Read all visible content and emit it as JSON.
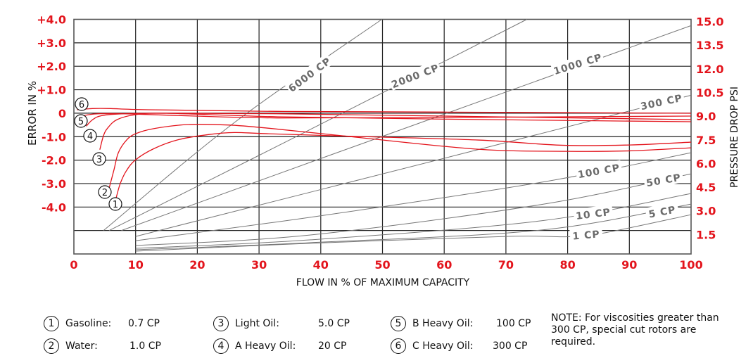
{
  "chart_data": {
    "type": "line",
    "xlabel": "FLOW IN % OF MAXIMUM CAPACITY",
    "ylabel": "ERROR IN %",
    "y2label": "PRESSURE DROP PSI",
    "xlim": [
      0,
      100
    ],
    "ylim": [
      -5.0,
      5.0
    ],
    "y2lim": [
      0,
      15.0
    ],
    "x_ticks": [
      "0",
      "10",
      "20",
      "30",
      "40",
      "50",
      "60",
      "70",
      "80",
      "90",
      "100"
    ],
    "y_ticks": [
      "+4.0",
      "+3.0",
      "+2.0",
      "+1.0",
      "0",
      "-1.0",
      "-2.0",
      "-3.0",
      "-4.0"
    ],
    "y2_ticks": [
      "15.0",
      "13.5",
      "12.0",
      "10.5",
      "9.0",
      "7.5",
      "6.0",
      "4.5",
      "3.0",
      "1.5"
    ],
    "grid": true,
    "colors": {
      "error": "#e3141c",
      "pressure": "#777777",
      "tick_label": "#e3141c",
      "grid": "#222222"
    },
    "error_series": [
      {
        "label": "1",
        "points": [
          [
            6.8,
            -3.65
          ],
          [
            7.5,
            -3.0
          ],
          [
            8.5,
            -2.45
          ],
          [
            10,
            -1.98
          ],
          [
            13,
            -1.5
          ],
          [
            17,
            -1.12
          ],
          [
            22,
            -0.9
          ],
          [
            26,
            -0.82
          ],
          [
            31.3,
            -0.87
          ],
          [
            45,
            -0.98
          ],
          [
            65.5,
            -1.14
          ],
          [
            79,
            -1.36
          ],
          [
            90,
            -1.35
          ],
          [
            100,
            -1.23
          ]
        ]
      },
      {
        "label": "2",
        "points": [
          [
            5.7,
            -3.2
          ],
          [
            6.5,
            -2.4
          ],
          [
            7.2,
            -1.68
          ],
          [
            8.5,
            -1.15
          ],
          [
            10,
            -0.87
          ],
          [
            13,
            -0.65
          ],
          [
            18.5,
            -0.48
          ],
          [
            25,
            -0.5
          ],
          [
            31.3,
            -0.63
          ],
          [
            45,
            -1.0
          ],
          [
            65.5,
            -1.53
          ],
          [
            80,
            -1.62
          ],
          [
            90,
            -1.6
          ],
          [
            100,
            -1.47
          ]
        ]
      },
      {
        "label": "3",
        "points": [
          [
            4.2,
            -1.55
          ],
          [
            4.8,
            -0.95
          ],
          [
            5.5,
            -0.62
          ],
          [
            7,
            -0.27
          ],
          [
            10,
            -0.06
          ],
          [
            15,
            0.0
          ],
          [
            33,
            -0.15
          ],
          [
            60,
            -0.25
          ],
          [
            100,
            -0.36
          ]
        ]
      },
      {
        "label": "4",
        "points": [
          [
            2.0,
            -0.55
          ],
          [
            3.0,
            -0.28
          ],
          [
            4.5,
            -0.1
          ],
          [
            8,
            -0.02
          ],
          [
            15,
            0.0
          ],
          [
            33,
            -0.02
          ],
          [
            60,
            -0.12
          ],
          [
            100,
            -0.27
          ]
        ]
      },
      {
        "label": "5",
        "points": [
          [
            0.5,
            -0.2
          ],
          [
            2.0,
            -0.08
          ],
          [
            4,
            -0.02
          ],
          [
            8,
            -0.02
          ],
          [
            15,
            -0.08
          ],
          [
            33,
            -0.2
          ],
          [
            60,
            -0.18
          ],
          [
            100,
            -0.12
          ]
        ]
      },
      {
        "label": "6",
        "points": [
          [
            0.5,
            0.15
          ],
          [
            3,
            0.2
          ],
          [
            6,
            0.2
          ],
          [
            12,
            0.15
          ],
          [
            33,
            0.08
          ],
          [
            60,
            0.05
          ],
          [
            100,
            0.0
          ]
        ]
      }
    ],
    "pressure_series": [
      {
        "label": "6000 CP",
        "points": [
          [
            4.8,
            1.5
          ],
          [
            26,
            8.4
          ],
          [
            49.9,
            15.0
          ]
        ]
      },
      {
        "label": "2000 CP",
        "points": [
          [
            5.7,
            1.5
          ],
          [
            34.5,
            7.2
          ],
          [
            73.4,
            15.0
          ]
        ]
      },
      {
        "label": "1000 CP",
        "points": [
          [
            7.7,
            1.5
          ],
          [
            41.6,
            6.33
          ],
          [
            100,
            14.6
          ]
        ]
      },
      {
        "label": "300 CP",
        "points": [
          [
            10,
            1.12
          ],
          [
            62.1,
            6.33
          ],
          [
            100,
            10.15
          ]
        ]
      },
      {
        "label": "100 CP",
        "points": [
          [
            10,
            0.85
          ],
          [
            38.9,
            2.38
          ],
          [
            75.7,
            4.58
          ],
          [
            100,
            6.47
          ]
        ]
      },
      {
        "label": "50 CP",
        "points": [
          [
            10,
            0.54
          ],
          [
            38.2,
            1.21
          ],
          [
            75.7,
            3.16
          ],
          [
            100,
            5.12
          ]
        ]
      },
      {
        "label": "10 CP",
        "points": [
          [
            10,
            0.36
          ],
          [
            38.2,
            0.9
          ],
          [
            75.7,
            2.12
          ],
          [
            100,
            3.86
          ]
        ]
      },
      {
        "label": "5 CP",
        "points": [
          [
            10,
            0.27
          ],
          [
            38.2,
            0.72
          ],
          [
            75.7,
            1.53
          ],
          [
            100,
            3.19
          ]
        ]
      },
      {
        "label": "1 CP",
        "points": [
          [
            10,
            0.18
          ],
          [
            38.2,
            0.68
          ],
          [
            70,
            1.12
          ],
          [
            80,
            1.1
          ],
          [
            86,
            1.35
          ],
          [
            100,
            2.51
          ]
        ]
      }
    ]
  },
  "legend": [
    {
      "num": "1",
      "name": "Gasoline:",
      "value": "0.7 CP"
    },
    {
      "num": "2",
      "name": "Water:",
      "value": "1.0 CP"
    },
    {
      "num": "3",
      "name": "Light Oil:",
      "value": "5.0 CP"
    },
    {
      "num": "4",
      "name": "A Heavy Oil:",
      "value": "20 CP"
    },
    {
      "num": "5",
      "name": "B Heavy Oil:",
      "value": "100 CP"
    },
    {
      "num": "6",
      "name": "C Heavy Oil:",
      "value": "300 CP"
    }
  ],
  "note": "NOTE: For viscosities greater than 300 CP, special cut rotors are required."
}
